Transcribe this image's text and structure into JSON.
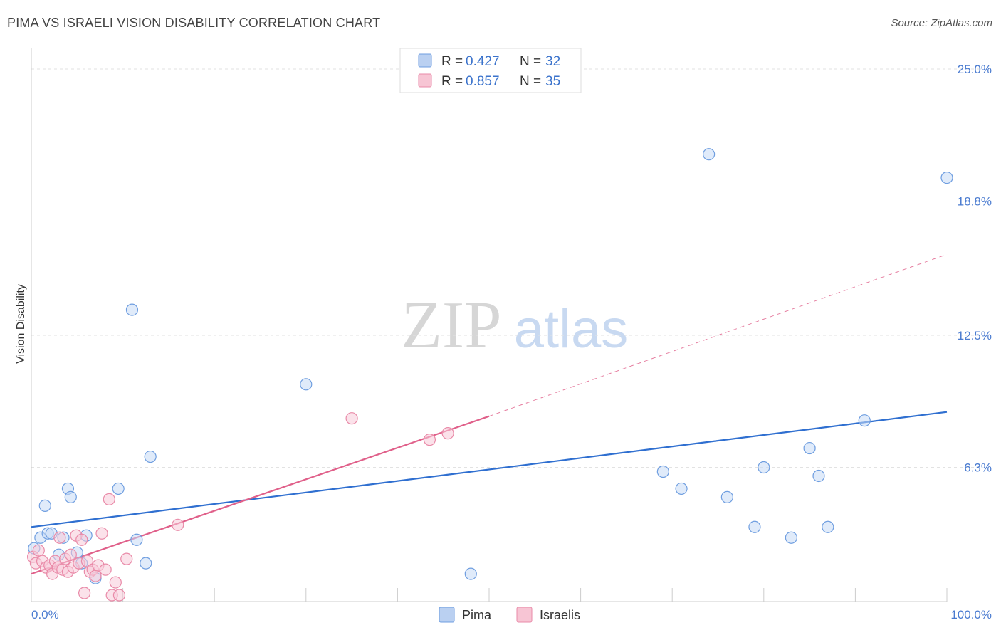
{
  "title": "PIMA VS ISRAELI VISION DISABILITY CORRELATION CHART",
  "source": "Source: ZipAtlas.com",
  "watermark": {
    "part1": "ZIP",
    "part2": "atlas"
  },
  "legend": {
    "r_label": "R =",
    "n_label": "N =",
    "entries": [
      {
        "r": "0.427",
        "n": "32",
        "color": "#a9c4ee"
      },
      {
        "r": "0.857",
        "n": "35",
        "color": "#f5b6c9"
      }
    ]
  },
  "bottom_legend": [
    "Pima",
    "Israelis"
  ],
  "chart_data": {
    "type": "scatter",
    "xlabel": "",
    "ylabel": "Vision Disability",
    "xlim": [
      0,
      100
    ],
    "ylim": [
      0,
      26
    ],
    "x_tick_labels": [
      {
        "value": 0,
        "label": "0.0%"
      },
      {
        "value": 100,
        "label": "100.0%"
      }
    ],
    "y_tick_labels": [
      {
        "value": 6.3,
        "label": "6.3%"
      },
      {
        "value": 12.5,
        "label": "12.5%"
      },
      {
        "value": 18.8,
        "label": "18.8%"
      },
      {
        "value": 25.0,
        "label": "25.0%"
      }
    ],
    "grid": true,
    "series": [
      {
        "name": "Pima",
        "color": "#6f9ee0",
        "fill": "#c7dbf5",
        "trend_color": "#2f6fd0",
        "trend": {
          "x0": 0,
          "y0": 3.5,
          "x1": 100,
          "y1": 8.9
        },
        "points": [
          [
            0.3,
            2.5
          ],
          [
            1.0,
            3.0
          ],
          [
            1.5,
            4.5
          ],
          [
            1.8,
            3.2
          ],
          [
            2.2,
            3.2
          ],
          [
            3.0,
            2.2
          ],
          [
            3.5,
            3.0
          ],
          [
            4.0,
            5.3
          ],
          [
            4.3,
            4.9
          ],
          [
            5.0,
            2.3
          ],
          [
            5.5,
            1.8
          ],
          [
            6.0,
            3.1
          ],
          [
            7.0,
            1.1
          ],
          [
            9.5,
            5.3
          ],
          [
            11.0,
            13.7
          ],
          [
            11.5,
            2.9
          ],
          [
            12.5,
            1.8
          ],
          [
            13.0,
            6.8
          ],
          [
            30.0,
            10.2
          ],
          [
            48.0,
            1.3
          ],
          [
            69.0,
            6.1
          ],
          [
            71.0,
            5.3
          ],
          [
            74.0,
            21.0
          ],
          [
            76.0,
            4.9
          ],
          [
            79.0,
            3.5
          ],
          [
            80.0,
            6.3
          ],
          [
            83.0,
            3.0
          ],
          [
            85.0,
            7.2
          ],
          [
            86.0,
            5.9
          ],
          [
            87.0,
            3.5
          ],
          [
            91.0,
            8.5
          ],
          [
            100.0,
            19.9
          ]
        ]
      },
      {
        "name": "Israelis",
        "color": "#e98aa8",
        "fill": "#f8cbd8",
        "trend_color": "#e0608a",
        "trend": {
          "x0": 0,
          "y0": 1.3,
          "x1": 50,
          "y1": 8.7,
          "x_dash_end": 100,
          "y_dash_end": 16.3
        },
        "points": [
          [
            0.2,
            2.1
          ],
          [
            0.5,
            1.8
          ],
          [
            0.8,
            2.4
          ],
          [
            1.2,
            1.9
          ],
          [
            1.6,
            1.6
          ],
          [
            2.0,
            1.7
          ],
          [
            2.3,
            1.3
          ],
          [
            2.6,
            1.9
          ],
          [
            2.9,
            1.6
          ],
          [
            3.1,
            3.0
          ],
          [
            3.4,
            1.5
          ],
          [
            3.7,
            2.0
          ],
          [
            4.0,
            1.4
          ],
          [
            4.3,
            2.2
          ],
          [
            4.6,
            1.6
          ],
          [
            4.9,
            3.1
          ],
          [
            5.2,
            1.8
          ],
          [
            5.5,
            2.9
          ],
          [
            5.8,
            0.4
          ],
          [
            6.1,
            1.9
          ],
          [
            6.4,
            1.4
          ],
          [
            6.7,
            1.5
          ],
          [
            7.0,
            1.2
          ],
          [
            7.3,
            1.7
          ],
          [
            7.7,
            3.2
          ],
          [
            8.1,
            1.5
          ],
          [
            8.5,
            4.8
          ],
          [
            8.8,
            0.3
          ],
          [
            9.2,
            0.9
          ],
          [
            9.6,
            0.3
          ],
          [
            10.4,
            2.0
          ],
          [
            16.0,
            3.6
          ],
          [
            35.0,
            8.6
          ],
          [
            43.5,
            7.6
          ],
          [
            45.5,
            7.9
          ]
        ]
      }
    ]
  }
}
